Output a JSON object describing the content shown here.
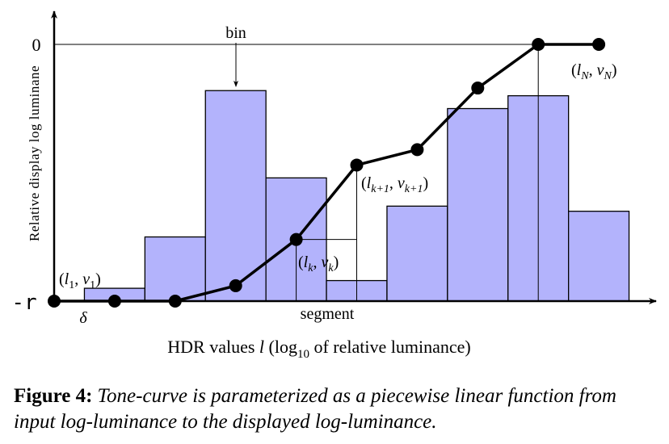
{
  "chart_data": {
    "type": "bar+line",
    "ylabel": "Relative display log luminane",
    "xlabel_parts": {
      "pre": "HDR values ",
      "var": "l",
      "mid": " (log",
      "sub": "10",
      "post": " of relative luminance)"
    },
    "y_ticks": [
      "0",
      "-r"
    ],
    "ylim_labels": {
      "top": "0",
      "bottom": "-r"
    },
    "histogram": {
      "bin_start_index": [
        0.5,
        1.5,
        2.5,
        3.5,
        4.5,
        5.5,
        6.5,
        7.5,
        8.5
      ],
      "heights": [
        0.05,
        0.25,
        0.82,
        0.48,
        0.08,
        0.37,
        0.75,
        0.8,
        0.35
      ],
      "fill": "#b3b3fc",
      "stroke": "#000000"
    },
    "tone_curve": {
      "l_index": [
        0,
        1,
        2,
        3,
        4,
        5,
        6,
        7,
        8,
        9
      ],
      "v": [
        0,
        0,
        0,
        0.06,
        0.24,
        0.53,
        0.59,
        0.83,
        1,
        1
      ],
      "color": "#000000"
    },
    "annotations": {
      "bin": "bin",
      "segment": "segment",
      "delta": "δ",
      "p1": {
        "open": "(",
        "l": "l",
        "lsub": "1",
        "comma": ", ",
        "v": "v",
        "vsub": "1",
        "close": ")"
      },
      "pk": {
        "open": "(",
        "l": "l",
        "lsub": "k",
        "comma": ", ",
        "v": "v",
        "vsub": "k",
        "close": ")"
      },
      "pk1": {
        "open": "(",
        "l": "l",
        "lsub": "k+1",
        "comma": ", ",
        "v": "v",
        "vsub": "k+1",
        "close": ")"
      },
      "pN": {
        "open": "(",
        "l": "l",
        "lsub": "N",
        "comma": ", ",
        "v": "v",
        "vsub": "N",
        "close": ")"
      }
    }
  },
  "caption": {
    "label": "Figure 4:",
    "text": "Tone-curve is parameterized as a piecewise linear function from input log-luminance to the displayed log-luminance."
  }
}
